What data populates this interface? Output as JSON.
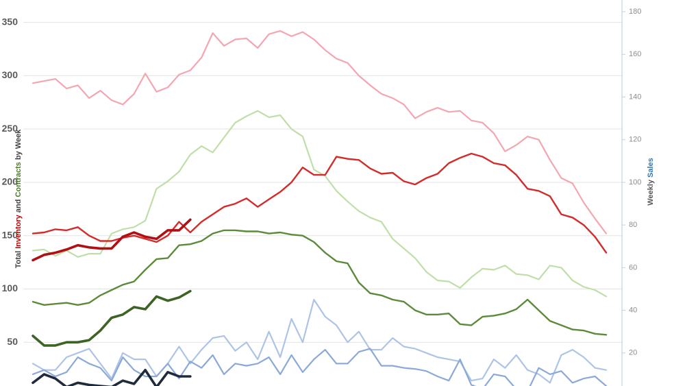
{
  "chart_data": {
    "type": "line",
    "ylabel_parts": [
      "Total ",
      "Inventory",
      " and ",
      "Contracts",
      " by Week"
    ],
    "ylabel_colors": [
      "#404040",
      "#c00000",
      "#404040",
      "#4f7a28",
      "#404040"
    ],
    "y2label_parts": [
      "Weekly ",
      "Sales"
    ],
    "y2label_colors": [
      "#595959",
      "#2e75b6"
    ],
    "ylim": [
      9,
      371
    ],
    "yticks": [
      50,
      100,
      150,
      200,
      250,
      300,
      350
    ],
    "y2lim": [
      4.5,
      185.5
    ],
    "y2ticks": [
      20,
      40,
      60,
      80,
      100,
      120,
      140,
      160,
      180
    ],
    "grid": true,
    "series": [
      {
        "color": "#f4a6b0",
        "width": 2.2,
        "values": [
          293,
          295,
          297,
          288,
          291,
          279,
          286,
          277,
          273,
          283,
          302,
          285,
          289,
          301,
          305,
          317,
          340,
          328,
          334,
          335,
          326,
          339,
          342,
          337,
          341,
          334,
          324,
          316,
          312,
          300,
          291,
          283,
          279,
          273,
          260,
          266,
          270,
          266,
          267,
          258,
          256,
          246,
          229,
          235,
          243,
          240,
          221,
          204,
          199,
          181,
          166,
          152
        ]
      },
      {
        "color": "#c0dea8",
        "width": 2.2,
        "values": [
          136,
          137,
          131,
          136,
          130,
          133,
          133,
          152,
          156,
          158,
          164,
          194,
          201,
          210,
          226,
          234,
          228,
          242,
          256,
          262,
          267,
          261,
          263,
          250,
          243,
          212,
          206,
          192,
          182,
          173,
          167,
          163,
          147,
          138,
          129,
          116,
          108,
          107,
          101,
          111,
          119,
          118,
          122,
          114,
          113,
          109,
          122,
          120,
          108,
          102,
          99,
          93
        ]
      },
      {
        "color": "#d42a2a",
        "width": 2.4,
        "values": [
          152,
          153,
          156,
          155,
          158,
          150,
          145,
          145,
          148,
          150,
          147,
          144,
          150,
          163,
          153,
          163,
          170,
          177,
          180,
          185,
          177,
          184,
          191,
          200,
          214,
          207,
          207,
          224,
          222,
          221,
          213,
          208,
          209,
          201,
          198,
          204,
          208,
          218,
          223,
          227,
          224,
          218,
          216,
          207,
          194,
          192,
          187,
          170,
          167,
          160,
          149,
          134
        ]
      },
      {
        "color": "#b00f14",
        "width": 3.6,
        "values": [
          127,
          132,
          134,
          137,
          141,
          139,
          138,
          138,
          149,
          153,
          149,
          147,
          155,
          155,
          165
        ]
      },
      {
        "color": "#5b8a3a",
        "width": 2.4,
        "values": [
          88,
          85,
          86,
          87,
          85,
          87,
          94,
          99,
          104,
          107,
          118,
          128,
          129,
          141,
          142,
          145,
          152,
          155,
          155,
          154,
          154,
          152,
          153,
          151,
          150,
          144,
          134,
          126,
          124,
          106,
          96,
          94,
          90,
          88,
          80,
          76,
          76,
          77,
          67,
          66,
          74,
          75,
          77,
          81,
          90,
          80,
          70,
          66,
          62,
          61,
          58,
          57
        ]
      },
      {
        "color": "#3d6425",
        "width": 3.6,
        "values": [
          56,
          47,
          47,
          50,
          50,
          52,
          61,
          73,
          76,
          83,
          81,
          93,
          89,
          92,
          98
        ]
      },
      {
        "color": "#adc4e6",
        "width": 2.2,
        "axis": "y2",
        "values": [
          15,
          12,
          12,
          18,
          20,
          22,
          15,
          8,
          20,
          17,
          17,
          9,
          15,
          23,
          15,
          21.5,
          27,
          28,
          21,
          25,
          17,
          30,
          18,
          36,
          25,
          45,
          37,
          33,
          25,
          30,
          21.5,
          21.5,
          27,
          23,
          22,
          20,
          18,
          17,
          16,
          7,
          8,
          17,
          13,
          19,
          12,
          10,
          6,
          19,
          21.5,
          18,
          13,
          12
        ]
      },
      {
        "color": "#8aa8d8",
        "width": 2.2,
        "axis": "y2",
        "values": [
          10,
          12,
          9,
          11,
          18,
          15,
          13,
          7,
          18,
          12,
          9,
          9,
          15,
          8,
          16,
          13,
          19,
          10,
          15,
          14,
          15,
          18,
          10,
          19,
          11,
          17,
          21.5,
          15,
          15,
          20.5,
          22,
          14,
          14,
          13,
          12.5,
          11.5,
          9,
          7,
          17,
          5,
          3,
          10,
          9,
          3,
          2,
          13,
          10,
          11.5,
          6,
          8,
          9,
          4.5
        ]
      },
      {
        "color": "#1f2a3a",
        "width": 3.6,
        "axis": "y2",
        "values": [
          6,
          10,
          8,
          4,
          6,
          5,
          4.5,
          4,
          7,
          5.5,
          12,
          4,
          11,
          9,
          9
        ]
      }
    ]
  }
}
